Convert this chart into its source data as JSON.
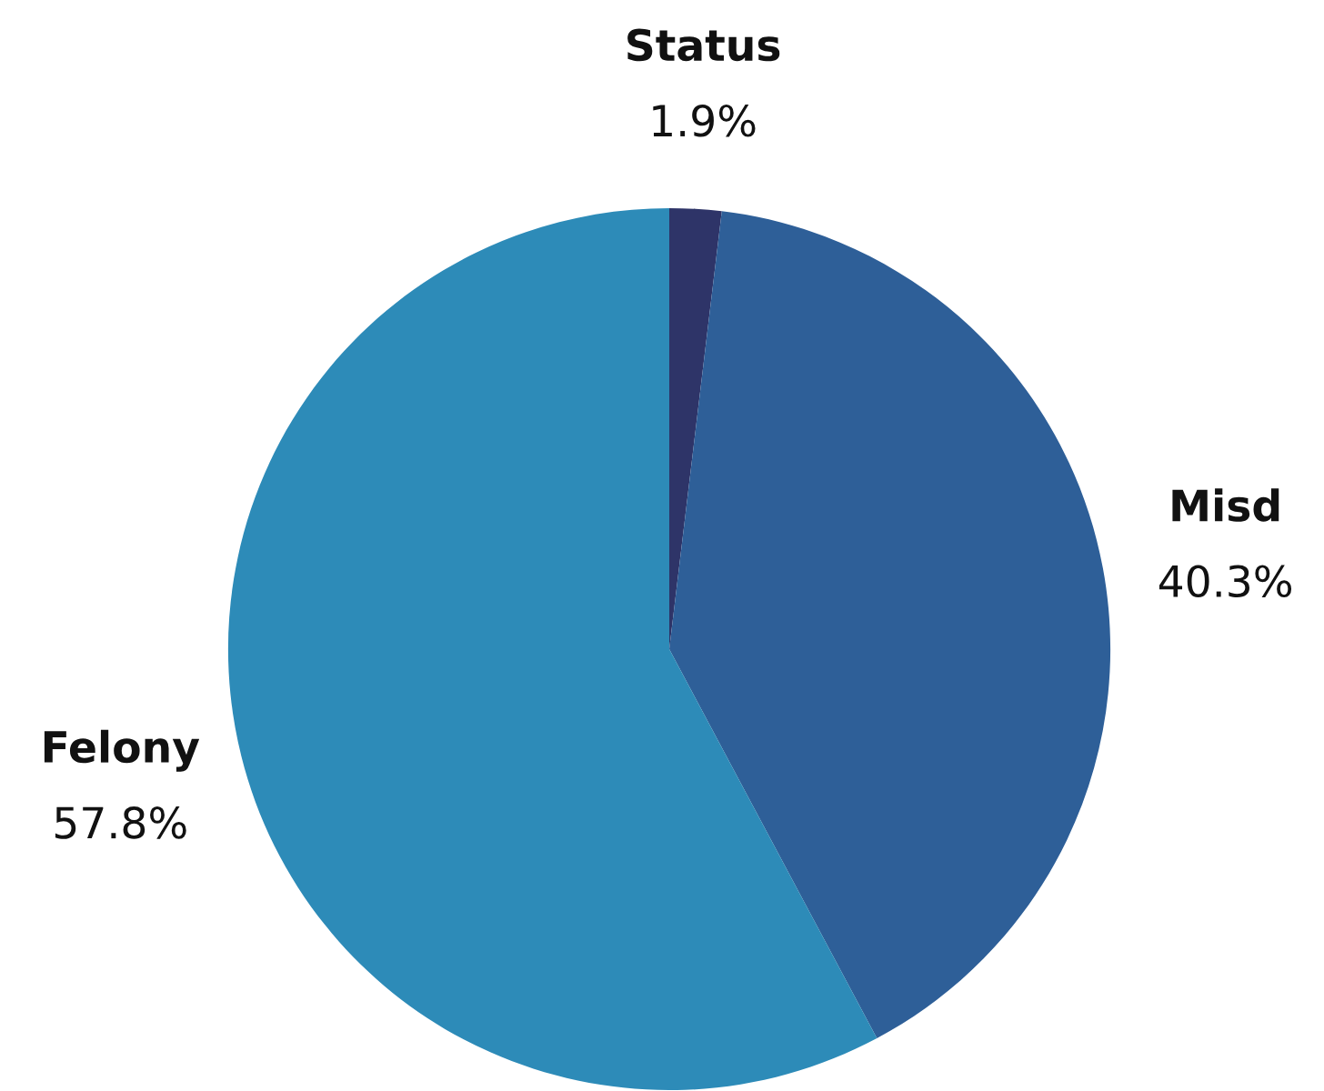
{
  "chart_data": {
    "type": "pie",
    "categories": [
      "Status",
      "Misd",
      "Felony"
    ],
    "values": [
      1.9,
      40.3,
      57.8
    ],
    "value_labels": [
      "1.9%",
      "40.3%",
      "57.8%"
    ],
    "colors": [
      "#2e3468",
      "#2e5f98",
      "#2d8bb8"
    ]
  }
}
